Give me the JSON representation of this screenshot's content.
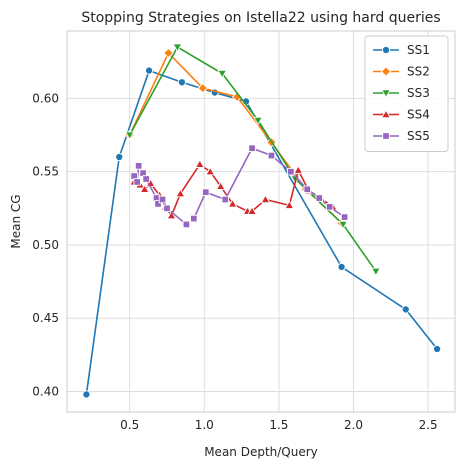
{
  "chart_data": {
    "type": "line",
    "title": "Stopping Strategies on Istella22 using hard queries",
    "xlabel": "Mean Depth/Query",
    "ylabel": "Mean CG",
    "xlim": [
      0.08,
      2.68
    ],
    "ylim": [
      0.386,
      0.646
    ],
    "xticks": [
      0.5,
      1.0,
      1.5,
      2.0,
      2.5
    ],
    "xtick_labels": [
      "0.5",
      "1.0",
      "1.5",
      "2.0",
      "2.5"
    ],
    "yticks": [
      0.4,
      0.45,
      0.5,
      0.55,
      0.6
    ],
    "ytick_labels": [
      "0.40",
      "0.45",
      "0.50",
      "0.55",
      "0.60"
    ],
    "grid": true,
    "legend_position": "top-right",
    "series": [
      {
        "name": "SS1",
        "color": "#1f77b4",
        "marker": "circle",
        "points": [
          [
            0.21,
            0.398
          ],
          [
            0.43,
            0.56
          ],
          [
            0.63,
            0.619
          ],
          [
            0.85,
            0.611
          ],
          [
            1.07,
            0.604
          ],
          [
            1.28,
            0.598
          ],
          [
            1.92,
            0.485
          ],
          [
            2.35,
            0.456
          ],
          [
            2.56,
            0.429
          ]
        ]
      },
      {
        "name": "SS2",
        "color": "#ff7f0e",
        "marker": "diamond",
        "points": [
          [
            0.5,
            0.575
          ],
          [
            0.76,
            0.631
          ],
          [
            0.99,
            0.607
          ],
          [
            1.22,
            0.601
          ],
          [
            1.45,
            0.57
          ],
          [
            1.68,
            0.538
          ],
          [
            1.92,
            0.515
          ]
        ]
      },
      {
        "name": "SS3",
        "color": "#2ca02c",
        "marker": "triangle-down",
        "points": [
          [
            0.5,
            0.575
          ],
          [
            0.82,
            0.635
          ],
          [
            1.12,
            0.617
          ],
          [
            1.36,
            0.585
          ],
          [
            1.61,
            0.545
          ],
          [
            1.93,
            0.514
          ],
          [
            2.15,
            0.482
          ]
        ]
      },
      {
        "name": "SS4",
        "color": "#d62728",
        "marker": "triangle-up",
        "points": [
          [
            0.53,
            0.543
          ],
          [
            0.57,
            0.541
          ],
          [
            0.6,
            0.538
          ],
          [
            0.64,
            0.542
          ],
          [
            0.7,
            0.534
          ],
          [
            0.74,
            0.526
          ],
          [
            0.78,
            0.52
          ],
          [
            0.84,
            0.535
          ],
          [
            0.97,
            0.555
          ],
          [
            1.04,
            0.55
          ],
          [
            1.11,
            0.54
          ],
          [
            1.19,
            0.528
          ],
          [
            1.29,
            0.523
          ],
          [
            1.32,
            0.523
          ],
          [
            1.41,
            0.531
          ],
          [
            1.57,
            0.527
          ],
          [
            1.63,
            0.551
          ],
          [
            1.7,
            0.537
          ],
          [
            1.78,
            0.532
          ],
          [
            1.86,
            0.526
          ]
        ]
      },
      {
        "name": "SS5",
        "color": "#9467bd",
        "marker": "square",
        "points": [
          [
            0.53,
            0.547
          ],
          [
            0.55,
            0.543
          ],
          [
            0.56,
            0.554
          ],
          [
            0.59,
            0.549
          ],
          [
            0.61,
            0.545
          ],
          [
            0.68,
            0.532
          ],
          [
            0.69,
            0.528
          ],
          [
            0.72,
            0.531
          ],
          [
            0.75,
            0.525
          ],
          [
            0.88,
            0.514
          ],
          [
            0.93,
            0.518
          ],
          [
            1.01,
            0.536
          ],
          [
            1.14,
            0.531
          ],
          [
            1.32,
            0.566
          ],
          [
            1.45,
            0.561
          ],
          [
            1.58,
            0.55
          ],
          [
            1.69,
            0.538
          ],
          [
            1.77,
            0.532
          ],
          [
            1.84,
            0.526
          ],
          [
            1.94,
            0.519
          ]
        ]
      }
    ]
  }
}
